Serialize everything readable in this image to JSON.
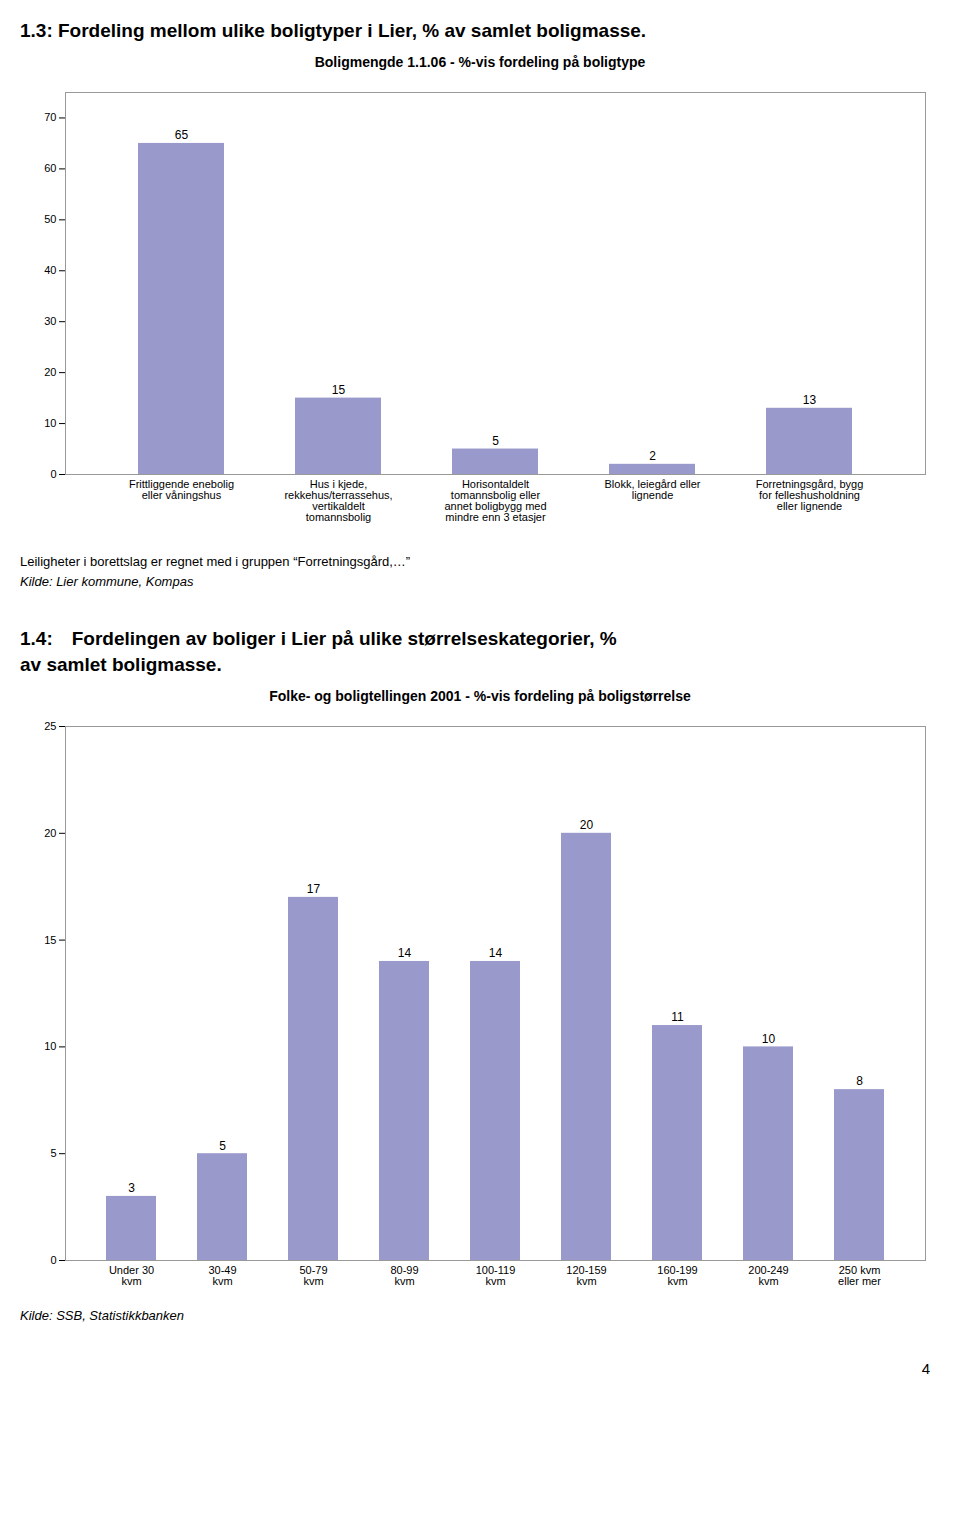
{
  "chart_data": [
    {
      "type": "bar",
      "subtitle": "1.3:  Fordeling mellom ulike boligtyper i Lier, % av samlet boligmasse.",
      "title": "Boligmengde 1.1.06 - %-vis fordeling på boligtype",
      "categories": [
        "Frittliggende enebolig\neller våningshus",
        "Hus i kjede,\nrekkehus/terrassehus,\nvertikaldelt\ntomannsbolig",
        "Horisontaldelt\ntomannsbolig eller\nannet boligbygg med\nmindre enn 3 etasjer",
        "Blokk, leiegård eller\nlignende",
        "Forretningsgård, bygg\nfor felleshusholdning\neller lignende"
      ],
      "values": [
        65,
        15,
        5,
        2,
        13
      ],
      "color": "#9999cc",
      "ylim": [
        0,
        75
      ],
      "yticks": [
        0,
        10,
        20,
        30,
        40,
        50,
        60,
        70
      ],
      "grid": false,
      "data_labels": true,
      "annotations": [
        "Leiligheter i borettslag er regnet med i gruppen “Forretningsgård,…”",
        "Kilde: Lier kommune, Kompas"
      ]
    },
    {
      "type": "bar",
      "subtitle": "1.4: Fordelingen av boliger i Lier på ulike størrelseskategorier, %\nav samlet boligmasse.",
      "title": "Folke- og boligtellingen 2001 - %-vis fordeling på boligstørrelse",
      "categories": [
        "Under 30\nkvm",
        "30-49\nkvm",
        "50-79\nkvm",
        "80-99\nkvm",
        "100-119\nkvm",
        "120-159\nkvm",
        "160-199\nkvm",
        "200-249\nkvm",
        "250 kvm\neller mer"
      ],
      "values": [
        3,
        5,
        17,
        14,
        14,
        20,
        11,
        10,
        8
      ],
      "color": "#9999cc",
      "ylim": [
        0,
        25
      ],
      "yticks": [
        0,
        5,
        10,
        15,
        20,
        25
      ],
      "grid": false,
      "data_labels": true,
      "annotations": [
        "Kilde: SSB, Statistikkbanken"
      ]
    }
  ],
  "annotations": [
    "4"
  ]
}
